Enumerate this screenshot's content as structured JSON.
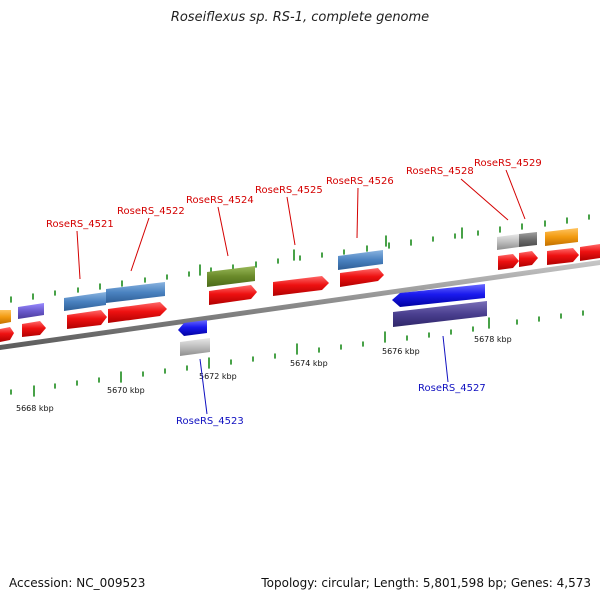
{
  "title": "Roseiflexus sp. RS-1, complete genome",
  "footer": {
    "accession": "Accession: NC_009523",
    "summary": "Topology: circular; Length: 5,801,598 bp; Genes: 4,573"
  },
  "scale_labels": [
    "5668 kbp",
    "5670 kbp",
    "5672 kbp",
    "5674 kbp",
    "5676 kbp",
    "5678 kbp"
  ],
  "genes": {
    "g4521": "RoseRS_4521",
    "g4522": "RoseRS_4522",
    "g4523": "RoseRS_4523",
    "g4524": "RoseRS_4524",
    "g4525": "RoseRS_4525",
    "g4526": "RoseRS_4526",
    "g4527": "RoseRS_4527",
    "g4528": "RoseRS_4528",
    "g4529": "RoseRS_4529"
  },
  "colors": {
    "forward_label": "#d40000",
    "reverse_label": "#1010c0",
    "cds_red": "#ee1111",
    "cds_blue": "#1a1aee",
    "feature_steelblue": "#4a82c0",
    "feature_olive": "#6a8a2a",
    "feature_orange": "#f29a10",
    "feature_purple": "#6a5acd",
    "feature_navy": "#4a3f8f",
    "feature_gray": "#bdbdbd",
    "tick_green": "#1a8a1a",
    "backbone": "#888888"
  }
}
